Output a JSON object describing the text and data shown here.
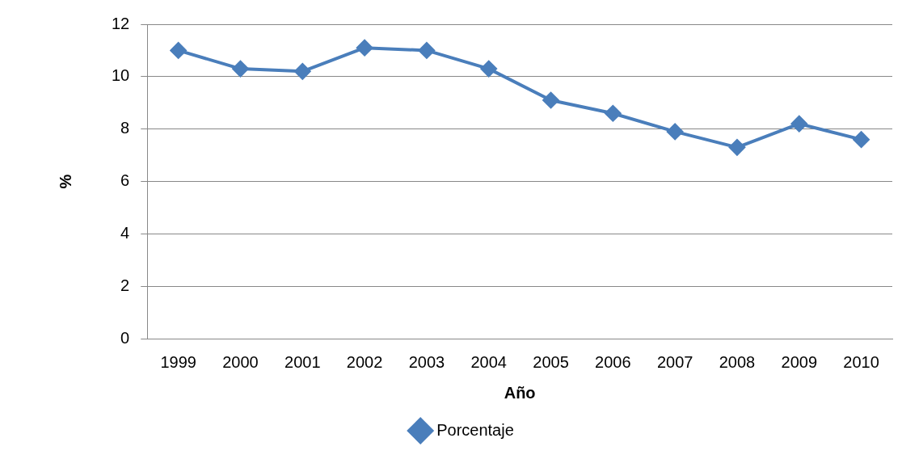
{
  "chart_data": {
    "type": "line",
    "xlabel": "Año",
    "ylabel": "%",
    "categories": [
      "1999",
      "2000",
      "2001",
      "2002",
      "2003",
      "2004",
      "2005",
      "2006",
      "2007",
      "2008",
      "2009",
      "2010"
    ],
    "series": [
      {
        "name": "Porcentaje",
        "color": "#4a7ebb",
        "values": [
          11.0,
          10.3,
          10.2,
          11.1,
          11.0,
          10.3,
          9.1,
          8.6,
          7.9,
          7.3,
          8.2,
          7.6
        ]
      }
    ],
    "ylim": [
      0,
      12
    ],
    "yticks": [
      0,
      2,
      4,
      6,
      8,
      10,
      12
    ],
    "grid": "y",
    "legend": "bottom",
    "marker": "diamond",
    "line_style": "solid"
  }
}
